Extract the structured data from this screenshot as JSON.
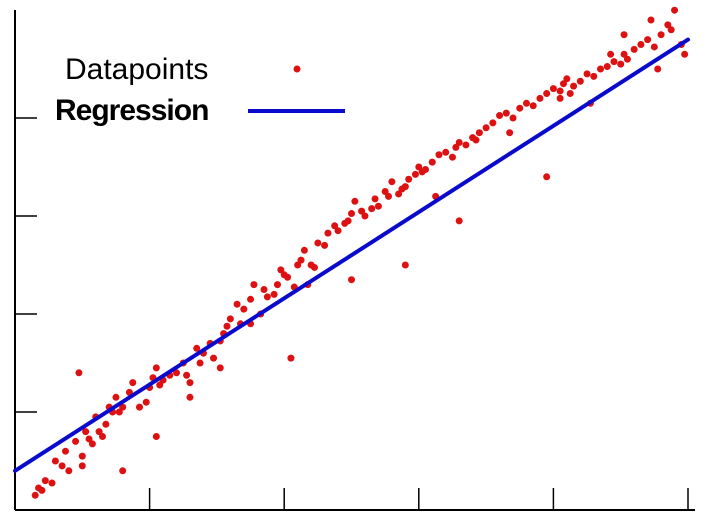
{
  "chart_data": {
    "type": "scatter",
    "title": "",
    "xlabel": "",
    "ylabel": "",
    "xlim": [
      0,
      10
    ],
    "ylim": [
      0,
      10
    ],
    "x_ticks": [
      2,
      4,
      6,
      8,
      10
    ],
    "y_ticks": [
      2,
      4,
      6,
      8
    ],
    "grid": false,
    "legend": {
      "position": "top-left",
      "entries": [
        {
          "label": "Datapoints",
          "marker": "dot"
        },
        {
          "label": "Regression",
          "marker": "line"
        }
      ]
    },
    "series": [
      {
        "name": "Datapoints",
        "kind": "scatter",
        "color": "#dd1111",
        "x": [
          0.3,
          0.35,
          0.45,
          0.55,
          0.7,
          0.75,
          0.9,
          1.0,
          1.0,
          1.05,
          1.1,
          1.15,
          1.2,
          1.25,
          1.3,
          1.35,
          1.45,
          1.5,
          1.55,
          1.6,
          1.7,
          1.75,
          1.85,
          1.95,
          2.0,
          2.05,
          2.1,
          2.15,
          2.2,
          2.3,
          2.4,
          2.5,
          2.55,
          2.6,
          2.7,
          2.75,
          2.8,
          2.9,
          2.95,
          3.05,
          3.1,
          3.15,
          3.2,
          3.3,
          3.35,
          3.4,
          3.5,
          3.55,
          3.65,
          3.7,
          3.75,
          3.85,
          3.9,
          3.95,
          4.0,
          4.05,
          4.15,
          4.2,
          4.25,
          4.3,
          4.4,
          4.45,
          4.5,
          4.6,
          4.65,
          4.75,
          4.8,
          4.9,
          4.95,
          5.0,
          5.05,
          5.15,
          5.2,
          5.3,
          5.35,
          5.4,
          5.5,
          5.55,
          5.6,
          5.7,
          5.75,
          5.8,
          5.85,
          5.95,
          6.0,
          6.05,
          6.1,
          6.2,
          6.3,
          6.4,
          6.5,
          6.55,
          6.6,
          6.7,
          6.8,
          6.85,
          6.9,
          7.0,
          7.1,
          7.2,
          7.3,
          7.4,
          7.5,
          7.6,
          7.7,
          7.8,
          7.9,
          8.0,
          8.1,
          8.15,
          8.2,
          8.3,
          8.4,
          8.5,
          8.6,
          8.7,
          8.8,
          8.9,
          9.0,
          9.05,
          9.1,
          9.2,
          9.3,
          9.4,
          9.5,
          9.6,
          9.7,
          9.8,
          9.9,
          9.95,
          0.4,
          0.6,
          0.8,
          1.4,
          2.1,
          3.05,
          4.35,
          5.0,
          6.25,
          7.35,
          8.1,
          8.25,
          8.55,
          9.05,
          9.45,
          9.75,
          6.6,
          5.8,
          4.1,
          2.6,
          1.6,
          0.95,
          7.9,
          8.85,
          9.55,
          3.5
        ],
        "y": [
          0.3,
          0.45,
          0.6,
          0.55,
          0.9,
          1.2,
          1.4,
          1.1,
          0.9,
          1.6,
          1.45,
          1.35,
          1.9,
          1.6,
          1.5,
          1.75,
          2.0,
          2.3,
          2.0,
          2.1,
          2.4,
          2.6,
          2.1,
          2.2,
          2.5,
          2.7,
          2.9,
          2.55,
          2.65,
          2.75,
          2.8,
          3.0,
          2.75,
          2.6,
          3.3,
          3.0,
          3.2,
          3.4,
          3.1,
          3.45,
          3.6,
          3.75,
          3.9,
          4.2,
          3.8,
          4.1,
          4.3,
          4.6,
          4.0,
          4.5,
          4.35,
          4.4,
          4.6,
          4.9,
          4.8,
          4.75,
          4.55,
          5.0,
          5.1,
          5.3,
          5.0,
          4.95,
          5.45,
          5.4,
          5.65,
          5.8,
          5.7,
          5.85,
          5.9,
          6.05,
          6.3,
          6.1,
          6.0,
          6.15,
          6.35,
          6.2,
          6.5,
          6.4,
          6.7,
          6.45,
          6.55,
          6.6,
          6.75,
          6.85,
          7.0,
          6.9,
          6.95,
          7.1,
          7.25,
          7.3,
          7.2,
          7.4,
          7.5,
          7.45,
          7.6,
          7.55,
          7.7,
          7.8,
          7.9,
          8.05,
          8.1,
          8.0,
          8.2,
          8.3,
          8.25,
          8.4,
          8.5,
          8.6,
          8.55,
          8.7,
          8.8,
          8.65,
          8.75,
          8.9,
          8.85,
          9.0,
          9.05,
          9.15,
          9.1,
          9.3,
          9.2,
          9.4,
          9.5,
          9.6,
          9.45,
          9.7,
          9.9,
          10.2,
          9.5,
          9.3,
          0.4,
          1.0,
          0.8,
          2.1,
          1.5,
          2.9,
          4.6,
          4.7,
          6.4,
          7.7,
          8.4,
          8.5,
          8.3,
          9.7,
          10.0,
          9.8,
          5.9,
          5.0,
          3.1,
          2.3,
          0.8,
          2.8,
          6.8,
          9.3,
          9.0,
          3.8
        ]
      },
      {
        "name": "Regression",
        "kind": "line",
        "color": "#0a0acc",
        "x": [
          0,
          10
        ],
        "y": [
          0.8,
          9.6
        ]
      }
    ]
  }
}
